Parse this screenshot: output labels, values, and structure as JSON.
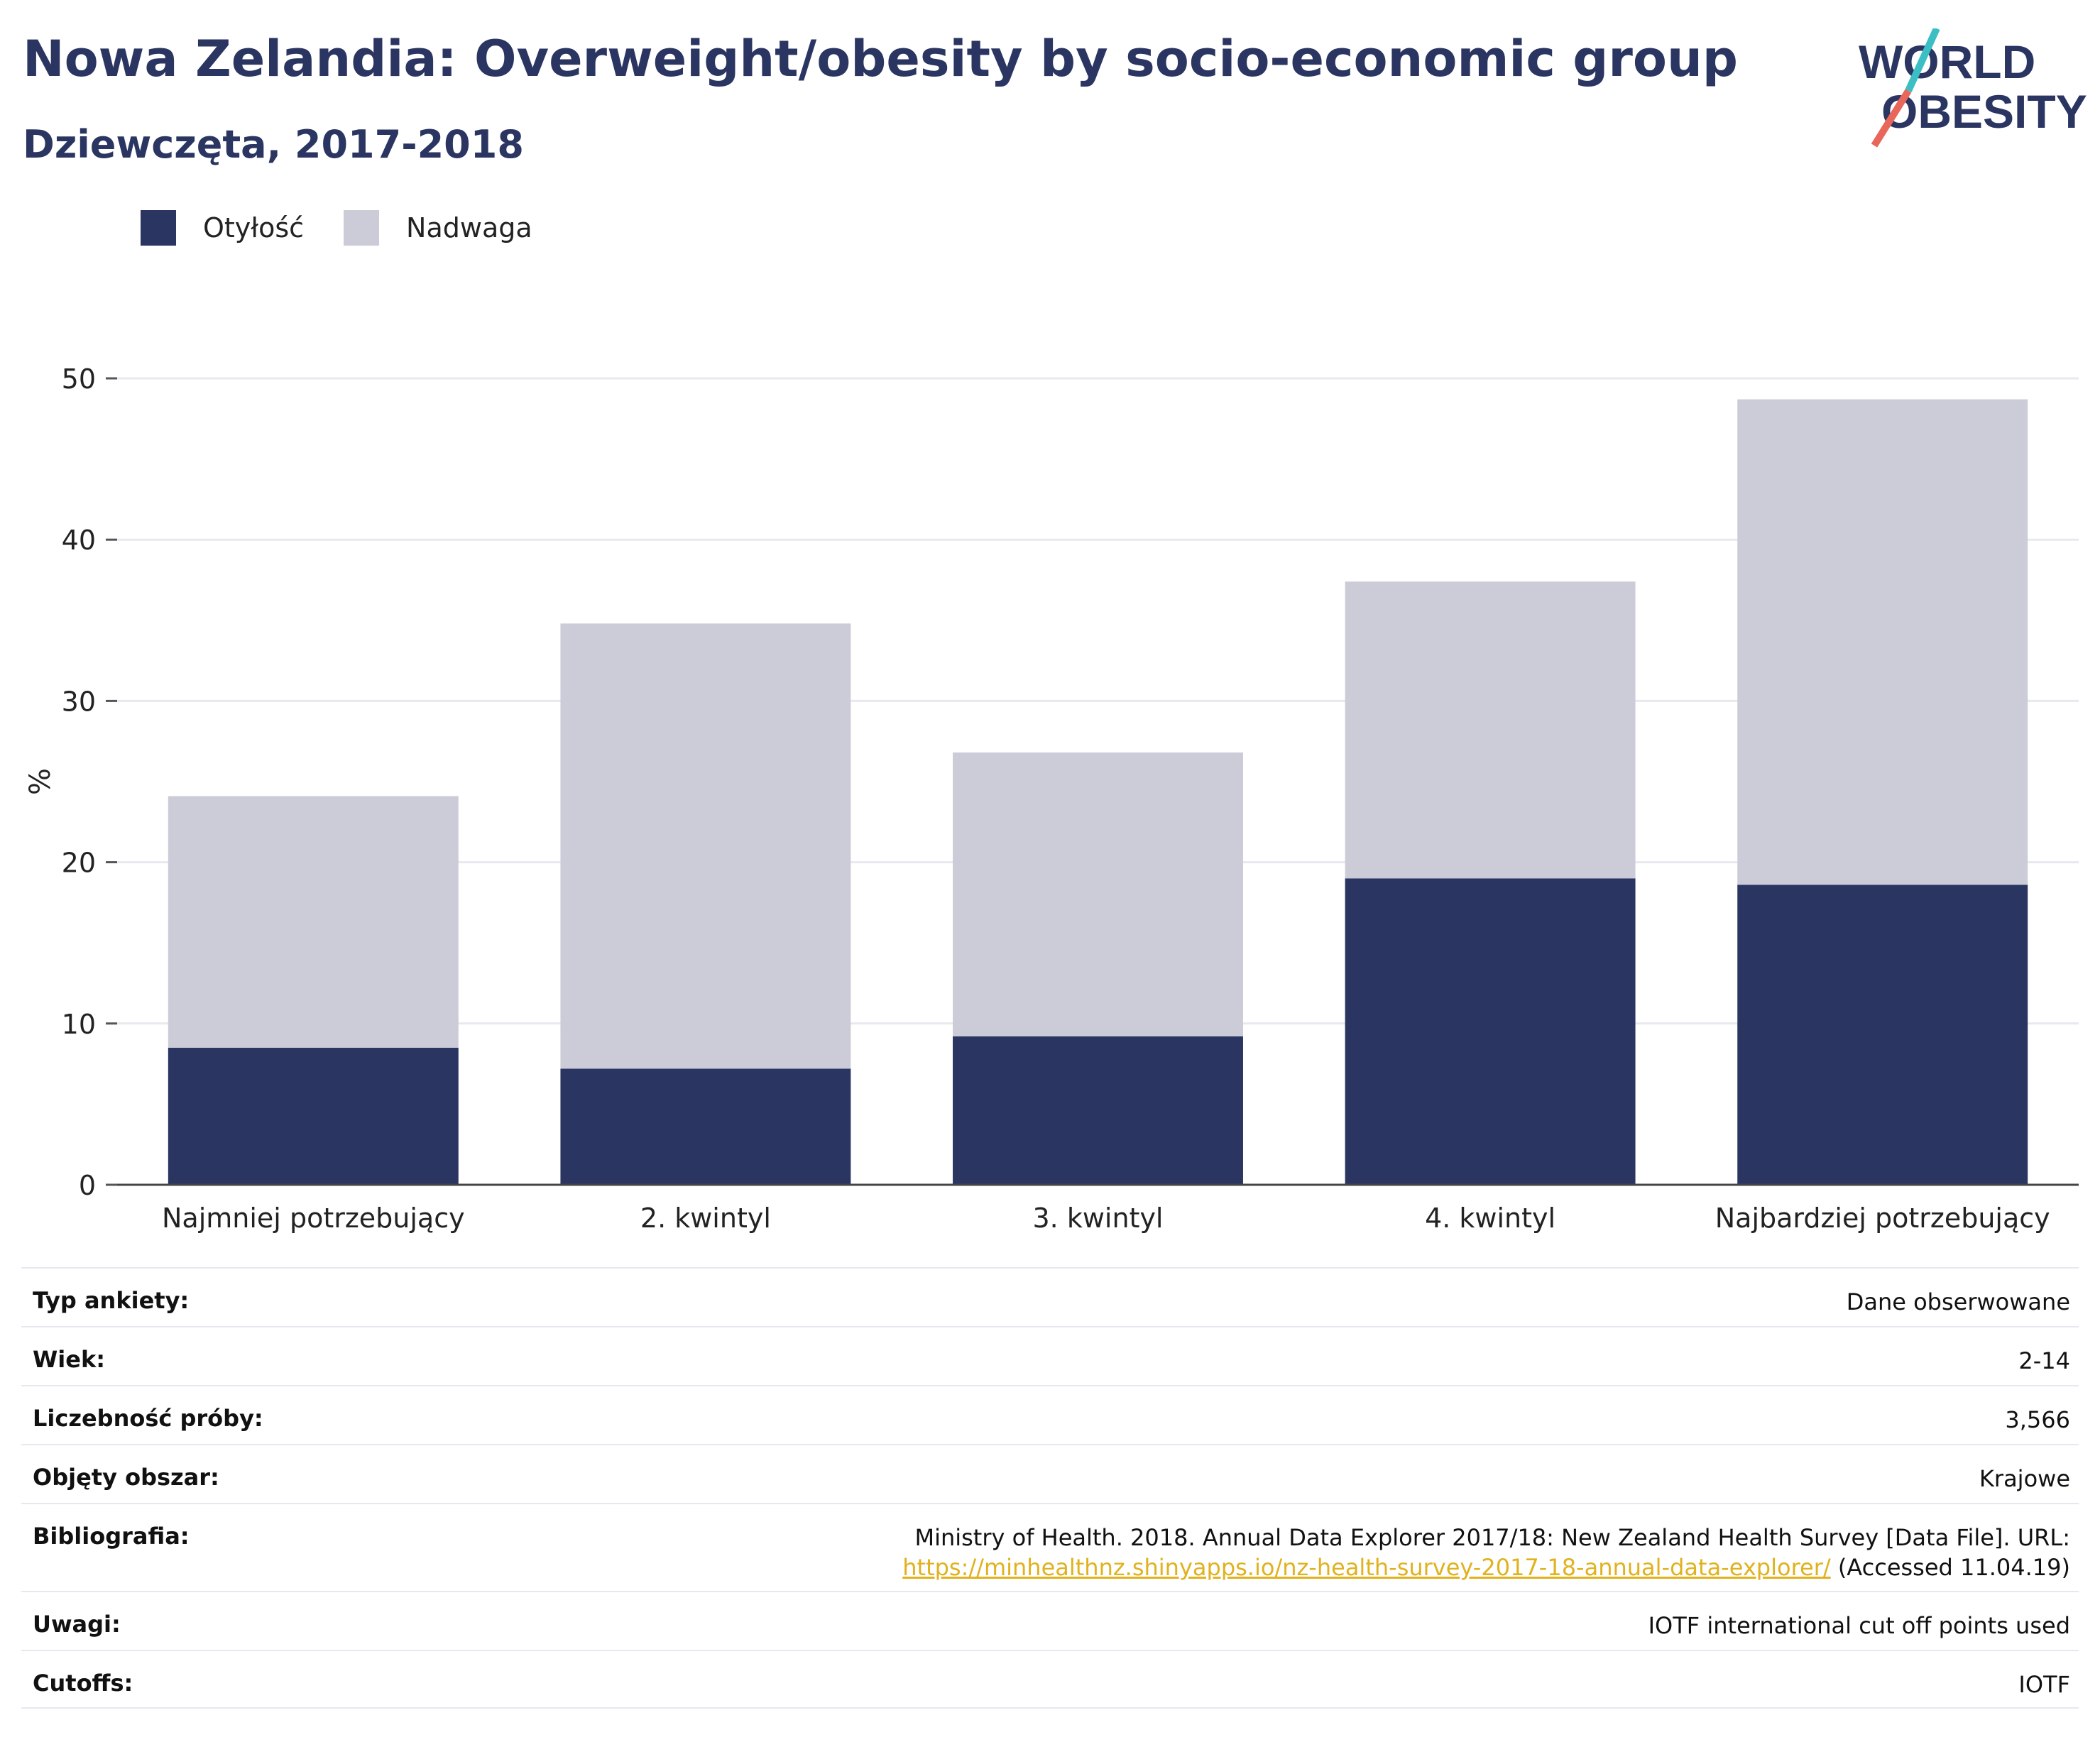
{
  "header": {
    "title": "Nowa Zelandia: Overweight/obesity by socio-economic group",
    "subtitle": "Dziewczęta, 2017-2018"
  },
  "logo": {
    "line1": "WORLD",
    "line2": "OBESITY",
    "colors": {
      "text": "#2b3561",
      "slash_top": "#3bbfc4",
      "slash_bottom": "#e8675a"
    }
  },
  "chart_data": {
    "type": "bar",
    "stacked": true,
    "categories": [
      "Najmniej potrzebujący",
      "2. kwintyl",
      "3. kwintyl",
      "4. kwintyl",
      "Najbardziej potrzebujący"
    ],
    "series": [
      {
        "name": "Otyłość",
        "color": "#2b3561",
        "values": [
          8.5,
          7.2,
          9.2,
          19.0,
          18.6
        ]
      },
      {
        "name": "Nadwaga",
        "color": "#cbccd8",
        "values": [
          15.6,
          27.6,
          17.6,
          18.4,
          30.1
        ]
      }
    ],
    "ylabel": "%",
    "xlabel": "",
    "ylim": [
      0,
      50
    ],
    "yticks": [
      0,
      10,
      20,
      30,
      40,
      50
    ],
    "grid": true,
    "legend": "top-left"
  },
  "metadata": [
    {
      "label": "Typ ankiety:",
      "value": "Dane obserwowane"
    },
    {
      "label": "Wiek:",
      "value": "2-14"
    },
    {
      "label": "Liczebność próby:",
      "value": "3,566"
    },
    {
      "label": "Objęty obszar:",
      "value": "Krajowe"
    },
    {
      "label": "Bibliografia:",
      "value": "Ministry of Health. 2018. Annual Data Explorer 2017/18: New Zealand Health Survey [Data File]. URL:",
      "link": "https://minhealthnz.shinyapps.io/nz-health-survey-2017-18-annual-data-explorer/",
      "value_after": " (Accessed 11.04.19)",
      "link_color": "#e0b21e"
    },
    {
      "label": "Uwagi:",
      "value": "IOTF international cut off points used"
    },
    {
      "label": "Cutoffs:",
      "value": "IOTF"
    }
  ]
}
